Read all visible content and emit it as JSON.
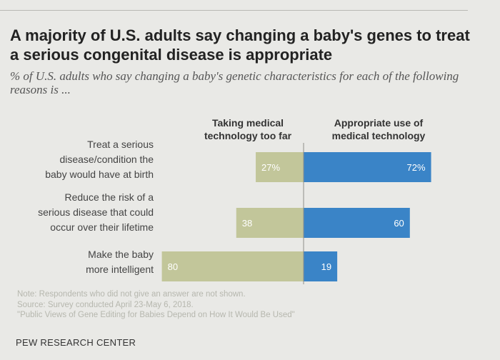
{
  "title": "A majority of U.S. adults say changing a baby's genes to treat a serious congenital disease is appropriate",
  "subtitle": "% of U.S. adults who say changing a baby's genetic characteristics for each of the following reasons is ...",
  "colors": {
    "too_far": "#c2c69a",
    "appropriate": "#3a84c7",
    "axis": "#8f8f8a",
    "label_text": "#ffffff"
  },
  "chart_data": {
    "type": "bar",
    "orientation": "horizontal-diverging",
    "title": "A majority of U.S. adults say changing a baby's genes to treat a serious congenital disease is appropriate",
    "series": [
      {
        "name": "Taking medical technology too far",
        "values": [
          27,
          38,
          80
        ]
      },
      {
        "name": "Appropriate use of medical technology",
        "values": [
          72,
          60,
          19
        ]
      }
    ],
    "categories": [
      "Treat a serious disease/condition the baby would have at birth",
      "Reduce the risk of a serious disease that could occur over their lifetime",
      "Make the baby more intelligent"
    ],
    "category_lines": [
      [
        "Treat a serious",
        "disease/condition the",
        "baby would have at birth"
      ],
      [
        "Reduce the risk of a",
        "serious disease that could",
        "occur over their lifetime"
      ],
      [
        "Make the baby",
        "more intelligent"
      ]
    ],
    "data_labels": [
      [
        "27%",
        "38",
        "80"
      ],
      [
        "72%",
        "60",
        "19"
      ]
    ],
    "column_headers": [
      [
        "Taking medical",
        "technology too far"
      ],
      [
        "Appropriate use of",
        "medical technology"
      ]
    ]
  },
  "notes": {
    "note": "Note: Respondents who did not give an answer are not shown.",
    "source": "Source: Survey conducted April 23-May 6, 2018.",
    "report": "\"Public Views of Gene Editing for Babies Depend on How It Would Be Used\""
  },
  "org": "PEW RESEARCH CENTER"
}
